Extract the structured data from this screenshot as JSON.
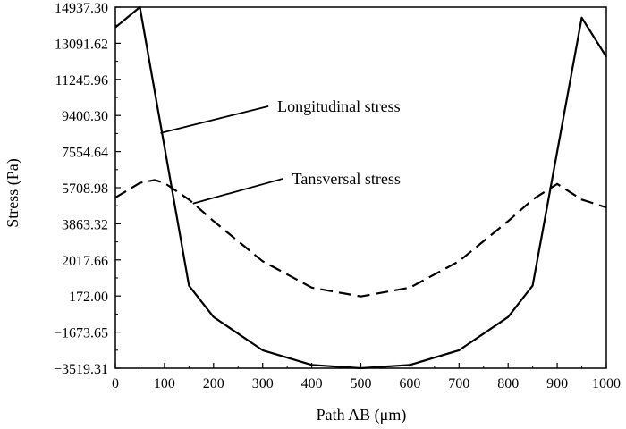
{
  "chart_data": {
    "type": "line",
    "title": "",
    "xlabel": "Path AB (μm)",
    "ylabel": "Stress (Pa)",
    "xlim": [
      0,
      1000
    ],
    "ylim": [
      -3519.31,
      14937.3
    ],
    "xticks": [
      "0",
      "100",
      "200",
      "300",
      "400",
      "500",
      "600",
      "700",
      "800",
      "900",
      "1000"
    ],
    "yticks": [
      "14937.30",
      "13091.62",
      "11245.96",
      "9400.30",
      "7554.64",
      "5708.98",
      "3863.32",
      "2017.66",
      "172.00",
      "−1673.65",
      "−3519.31"
    ],
    "grid": false,
    "legend": "none",
    "series": [
      {
        "name": "Longitudinal stress",
        "style": "solid",
        "x": [
          0,
          50,
          150,
          200,
          300,
          400,
          500,
          600,
          700,
          800,
          850,
          950,
          1000
        ],
        "y": [
          13900,
          14937.3,
          700,
          -900,
          -2600,
          -3350,
          -3519.31,
          -3350,
          -2600,
          -900,
          700,
          14400,
          12400
        ]
      },
      {
        "name": "Tansversal stress",
        "style": "dashed",
        "x": [
          0,
          50,
          80,
          100,
          150,
          200,
          300,
          400,
          500,
          600,
          700,
          800,
          850,
          900,
          950,
          1000
        ],
        "y": [
          5200,
          5950,
          6100,
          5950,
          5100,
          4000,
          1950,
          600,
          150,
          600,
          1950,
          4000,
          5100,
          5900,
          5100,
          4700
        ]
      }
    ],
    "annotations": [
      {
        "text": "Longitudinal stress",
        "x": 330,
        "y": 9600,
        "target_x": 92,
        "target_y": 8500
      },
      {
        "text": "Tansversal stress",
        "x": 360,
        "y": 5900,
        "target_x": 158,
        "target_y": 4900
      }
    ]
  }
}
